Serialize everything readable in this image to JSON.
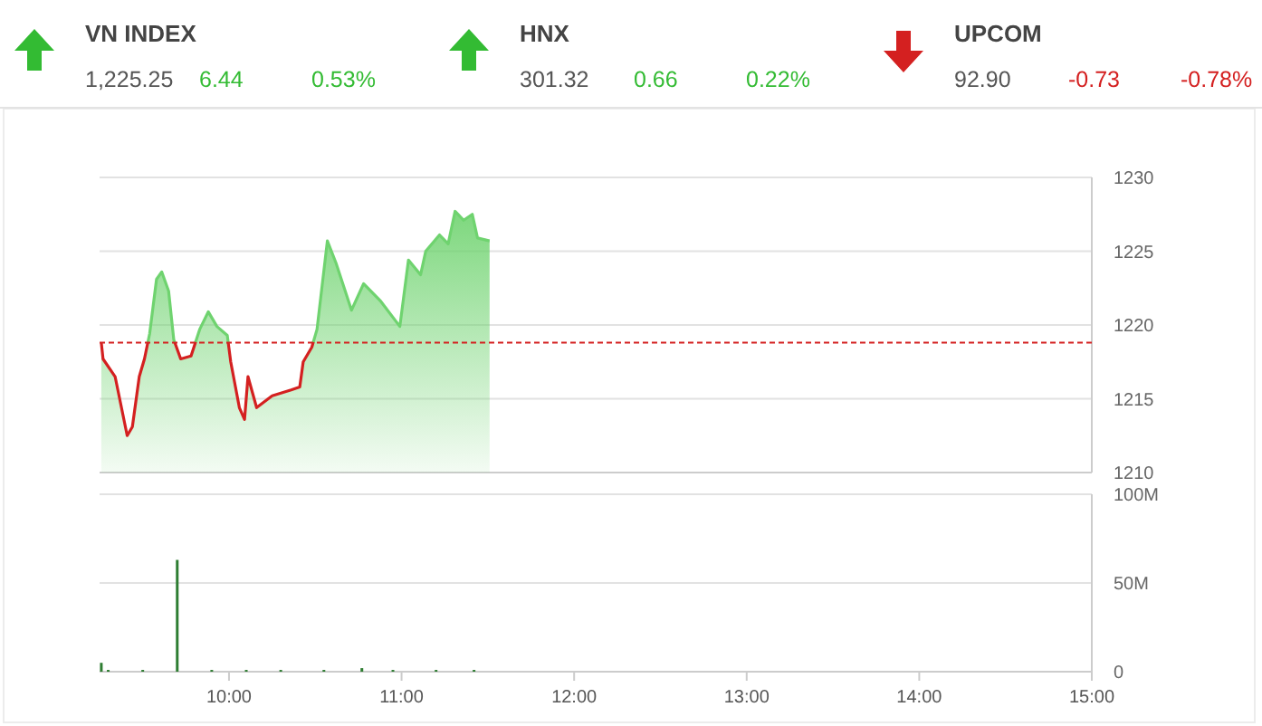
{
  "chart_data": [
    {
      "type": "other",
      "categories": [
        "VN INDEX",
        "HNX",
        "UPCOM"
      ],
      "values": [
        6.44,
        0.66,
        -0.73
      ],
      "value_labels": [
        "6.44",
        "0.66",
        "-0.73"
      ],
      "colors": [
        "#33bb33",
        "#33bb33",
        "#d42020"
      ],
      "annotations": [
        "1,225.25",
        "0.53%",
        "301.32",
        "0.22%",
        "92.90",
        "-0.78%"
      ]
    },
    {
      "type": "area",
      "x": [
        9.26,
        9.27,
        9.34,
        9.41,
        9.44,
        9.48,
        9.51,
        9.54,
        9.58,
        9.61,
        9.65,
        9.68,
        9.72,
        9.78,
        9.83,
        9.88,
        9.93,
        9.99,
        10.01,
        10.06,
        10.09,
        10.11,
        10.16,
        10.25,
        10.36,
        10.41,
        10.43,
        10.48,
        10.51,
        10.57,
        10.62,
        10.71,
        10.78,
        10.88,
        10.99,
        11.04,
        11.11,
        11.14,
        11.22,
        11.27,
        11.31,
        11.36,
        11.41,
        11.44,
        11.51
      ],
      "series": [
        {
          "color": "#6fd36f",
          "values": [
            1218.8,
            1217.7,
            1216.5,
            1212.5,
            1213.1,
            1216.5,
            1217.7,
            1219.4,
            1223.1,
            1223.6,
            1222.3,
            1219.0,
            1217.7,
            1217.9,
            1219.7,
            1220.9,
            1219.9,
            1219.3,
            1217.5,
            1214.4,
            1213.6,
            1216.5,
            1214.4,
            1215.2,
            1215.6,
            1215.8,
            1217.5,
            1218.5,
            1219.7,
            1225.7,
            1224.2,
            1221.0,
            1222.8,
            1221.6,
            1219.9,
            1224.4,
            1223.4,
            1225.0,
            1226.1,
            1225.5,
            1227.7,
            1227.1,
            1227.5,
            1225.9,
            1225.7
          ]
        }
      ],
      "xlim": [
        9.25,
        15
      ],
      "ylim": [
        1210,
        1230
      ],
      "yticks": [
        1210,
        1215,
        1220,
        1225,
        1230
      ],
      "grid": "y",
      "tick_labels": "y",
      "ref_lines": [
        {
          "axis": "y",
          "value": 1218.81,
          "color": "#d42020",
          "line_style": "dashed"
        }
      ]
    },
    {
      "type": "bar",
      "x": [
        9.26,
        9.3,
        9.5,
        9.7,
        9.9,
        10.1,
        10.3,
        10.55,
        10.77,
        10.95,
        11.2,
        11.42
      ],
      "series": [
        {
          "color": "#2e7d32",
          "values": [
            5,
            1,
            1,
            63,
            1,
            1,
            1,
            1,
            2,
            1,
            1,
            1
          ]
        }
      ],
      "xlim": [
        9.25,
        15
      ],
      "xticks": [
        {
          "value": 10,
          "label": "10:00"
        },
        {
          "value": 11,
          "label": "11:00"
        },
        {
          "value": 12,
          "label": "12:00"
        },
        {
          "value": 13,
          "label": "13:00"
        },
        {
          "value": 14,
          "label": "14:00"
        },
        {
          "value": 15,
          "label": "15:00"
        }
      ],
      "ylim": [
        0,
        100
      ],
      "yticks": [
        0,
        {
          "value": 50,
          "label": "50M"
        },
        {
          "value": 100,
          "label": "100M"
        }
      ],
      "grid": "y"
    }
  ]
}
